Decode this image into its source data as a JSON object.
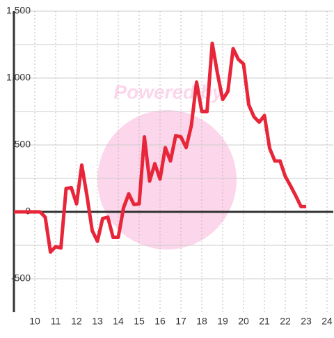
{
  "chart_data": {
    "type": "line",
    "watermark": "Powered by",
    "x": [
      9,
      9.25,
      9.5,
      9.75,
      10,
      10.25,
      10.5,
      10.75,
      11,
      11.25,
      11.5,
      11.75,
      12,
      12.25,
      12.5,
      12.75,
      13,
      13.25,
      13.5,
      13.75,
      14,
      14.25,
      14.5,
      14.75,
      15,
      15.25,
      15.5,
      15.75,
      16,
      16.25,
      16.5,
      16.75,
      17,
      17.25,
      17.5,
      17.75,
      18,
      18.25,
      18.5,
      18.75,
      19,
      19.25,
      19.5,
      19.75,
      20,
      20.25,
      20.5,
      20.75,
      21,
      21.25,
      21.5,
      21.75,
      22,
      22.25,
      22.5,
      22.75,
      23
    ],
    "series": [
      {
        "color": "#e8263a",
        "values": [
          0,
          0,
          0,
          0,
          0,
          0,
          -40,
          -300,
          -260,
          -270,
          175,
          180,
          60,
          350,
          120,
          -140,
          -220,
          -50,
          -40,
          -190,
          -190,
          30,
          135,
          55,
          60,
          560,
          230,
          360,
          245,
          480,
          380,
          570,
          560,
          480,
          645,
          970,
          750,
          750,
          1260,
          1035,
          840,
          900,
          1220,
          1140,
          1105,
          800,
          710,
          670,
          720,
          475,
          380,
          380,
          265,
          195,
          120,
          40,
          40
        ]
      }
    ],
    "xlim": [
      9,
      24.3
    ],
    "xticks": [
      10,
      11,
      12,
      13,
      14,
      15,
      16,
      17,
      18,
      19,
      20,
      21,
      22,
      23,
      24
    ],
    "ylim": [
      -750,
      1500
    ],
    "yticks": [
      -500,
      0,
      500,
      {
        "value": 1000,
        "label": "1,000"
      },
      {
        "value": 1500,
        "label": "1,500"
      }
    ],
    "minor_yticks": [
      -250,
      250,
      750,
      1250
    ],
    "grid": true
  }
}
